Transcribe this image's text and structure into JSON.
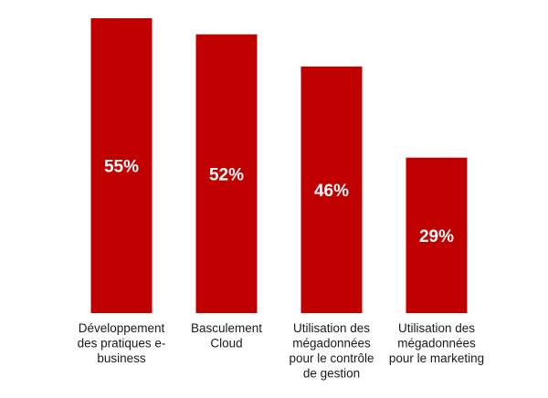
{
  "chart_data": {
    "type": "bar",
    "categories": [
      "Développement des pratiques e-business",
      "Basculement Cloud",
      "Utilisation des mégadonnées pour le contrôle de gestion",
      "Utilisation des mégadonnées pour le marketing"
    ],
    "category_label_lines": [
      [
        "Développement",
        "des pratiques e-",
        "business"
      ],
      [
        "Basculement",
        "Cloud"
      ],
      [
        "Utilisation des",
        "mégadonnées",
        "pour le contrôle",
        "de gestion"
      ],
      [
        "Utilisation des",
        "mégadonnées",
        "pour le marketing"
      ]
    ],
    "values": [
      55,
      52,
      46,
      29
    ],
    "data_labels": [
      "55%",
      "52%",
      "46%",
      "29%"
    ],
    "ylim": [
      0,
      55
    ],
    "grid": false,
    "legend": "none",
    "bar_color": "#c00000",
    "value_label_color": "#ffffff"
  }
}
